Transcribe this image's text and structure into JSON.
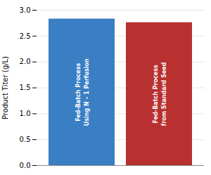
{
  "chart_data": {
    "type": "bar",
    "ylabel": "Product Titer (g/L)",
    "categories": [
      null,
      null
    ],
    "values": [
      2.83,
      2.76
    ],
    "colors": [
      "#3a7ec4",
      "#b83030"
    ],
    "annotations": [
      "Fed-Batch Process\nUsing N – 1 Perfusion",
      "Fed-Batch Process\nfrom Standard Seed"
    ],
    "ylim": [
      0,
      3.0
    ],
    "yticks": [
      {
        "value": 0.0,
        "label": "0.0"
      },
      0.5,
      {
        "value": 1.0,
        "label": "1.0"
      },
      1.5,
      {
        "value": 2.0,
        "label": "2.0"
      },
      2.5,
      {
        "value": 3.0,
        "label": "3.0"
      }
    ],
    "grid": true,
    "tick_labels": "y"
  }
}
